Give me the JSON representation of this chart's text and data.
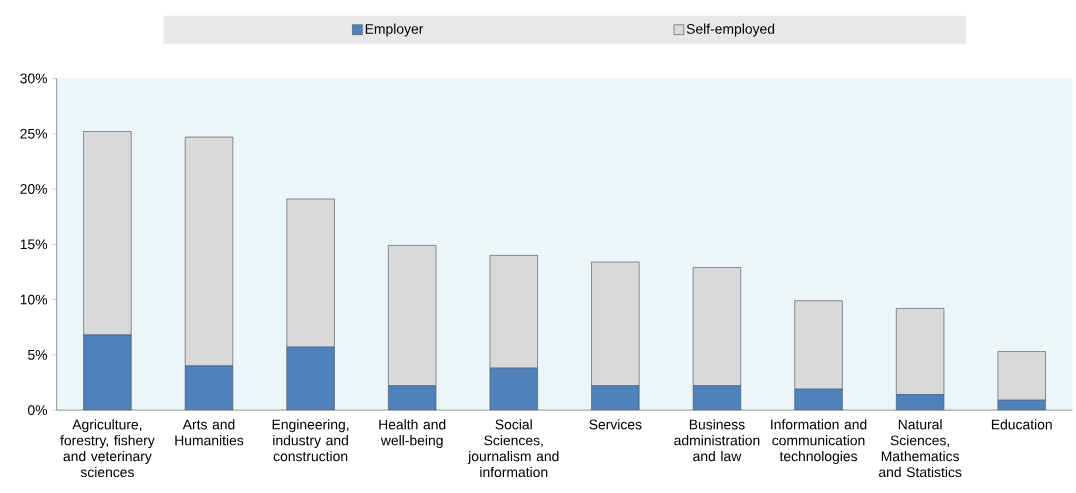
{
  "chart_data": {
    "type": "bar",
    "stacked": true,
    "legend": "top",
    "categories": [
      "Agriculture, forestry, fishery and veterinary sciences",
      "Arts and Humanities",
      "Engineering, industry and construction",
      "Health and well-being",
      "Social Sciences, journalism and information",
      "Services",
      "Business administration and law",
      "Information and communication technologies",
      "Natural Sciences, Mathematics and Statistics",
      "Education"
    ],
    "series": [
      {
        "name": "Employer",
        "color": "#4f81bd",
        "values": [
          6.8,
          4.0,
          5.7,
          2.2,
          3.8,
          2.2,
          2.2,
          1.9,
          1.4,
          0.9
        ]
      },
      {
        "name": "Self-employed",
        "color": "#d9d9d9",
        "values": [
          18.4,
          20.7,
          13.4,
          12.7,
          10.2,
          11.2,
          10.7,
          8.0,
          7.8,
          4.4
        ]
      }
    ],
    "ylim": [
      0,
      30
    ],
    "yticks": [
      {
        "value": 0,
        "label": "0%"
      },
      {
        "value": 5,
        "label": "5%"
      },
      {
        "value": 10,
        "label": "10%"
      },
      {
        "value": 15,
        "label": "15%"
      },
      {
        "value": 20,
        "label": "20%"
      },
      {
        "value": 25,
        "label": "25%"
      },
      {
        "value": 30,
        "label": "30%"
      }
    ]
  }
}
